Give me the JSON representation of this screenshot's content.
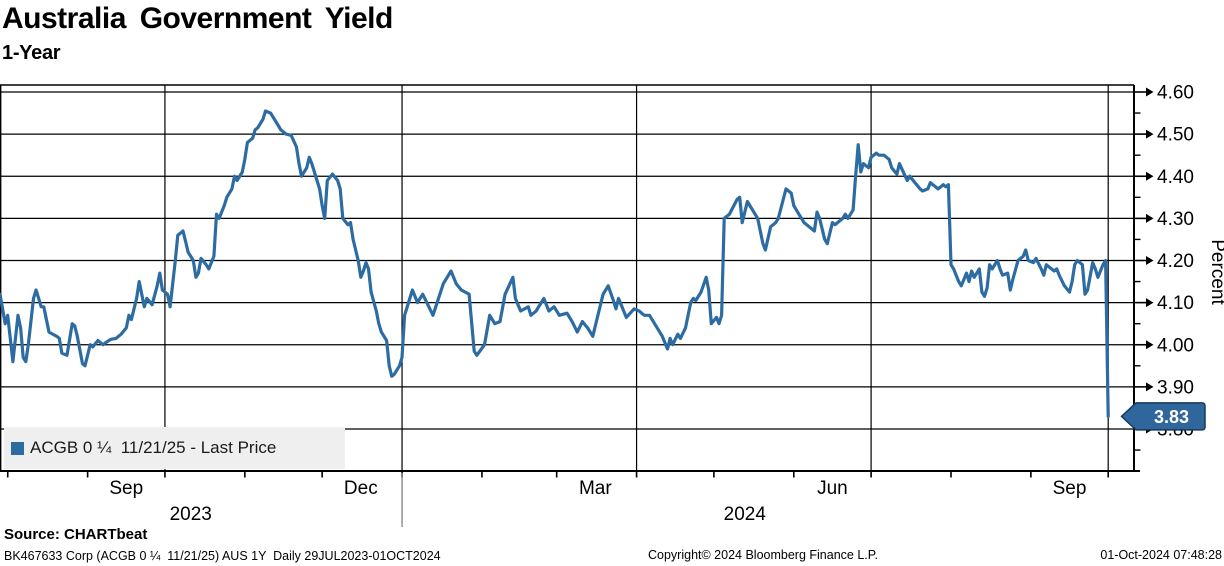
{
  "header": {
    "title": "Australia Government Yield",
    "subtitle": "1-Year"
  },
  "legend": {
    "label": "ACGB 0 ¼  11/21/25 - Last Price"
  },
  "last_price": "3.83",
  "source_line": "Source: CHARTbeat",
  "footer": {
    "left": "BK467633 Corp (ACGB 0 ¼  11/21/25) AUS 1Y  Daily 29JUL2023-01OCT2024",
    "center": "Copyright© 2024 Bloomberg Finance L.P.",
    "right": "01-Oct-2024 07:48:28"
  },
  "colors": {
    "line": "#2d6ca3",
    "badge_fill": "#2f679c",
    "badge_border": "#16395d",
    "badge_text": "#ffffff",
    "grid": "#000000",
    "legend_bg": "#efefef",
    "year_divider": "#8a8a8a"
  },
  "chart_data": {
    "type": "line",
    "title": "Australia Government Yield",
    "subtitle": "1-Year",
    "ylabel": "Percent",
    "ylim": [
      3.7,
      4.62
    ],
    "grid": true,
    "legend_position": "bottom-left",
    "yticks_major": [
      4.6,
      4.5,
      4.4,
      4.3,
      4.2,
      4.1,
      4.0,
      3.9,
      3.8
    ],
    "yticks_minor": [
      4.55,
      4.45,
      4.35,
      4.25,
      4.15,
      4.05,
      3.95,
      3.85,
      3.75
    ],
    "x_start_date": "2023-07-29",
    "x_end_date": "2024-10-01",
    "x_unit": "days_since_start",
    "x_total_days": 430,
    "month_tick_days": [
      3,
      34,
      64,
      95,
      125,
      156,
      187,
      216,
      247,
      277,
      308,
      338,
      369,
      400,
      430
    ],
    "quarter_grid_days": [
      64,
      156,
      247,
      338,
      430
    ],
    "month_labels": [
      {
        "label": "Sep",
        "day": 49
      },
      {
        "label": "Dec",
        "day": 140
      },
      {
        "label": "Mar",
        "day": 231
      },
      {
        "label": "Jun",
        "day": 323
      },
      {
        "label": "Sep",
        "day": 415
      }
    ],
    "year_labels": [
      {
        "label": "2023",
        "day": 74
      },
      {
        "label": "2024",
        "day": 289
      }
    ],
    "year_divider_day": 156,
    "series": [
      {
        "name": "ACGB 0 ¼ 11/21/25 - Last Price",
        "color": "#2d6ca3",
        "last_value": 3.83,
        "points": [
          [
            0,
            4.12
          ],
          [
            2,
            4.05
          ],
          [
            3,
            4.07
          ],
          [
            5,
            3.96
          ],
          [
            7,
            4.07
          ],
          [
            8,
            4.04
          ],
          [
            9,
            3.97
          ],
          [
            10,
            3.96
          ],
          [
            11,
            4.0
          ],
          [
            13,
            4.11
          ],
          [
            14,
            4.13
          ],
          [
            16,
            4.09
          ],
          [
            17,
            4.09
          ],
          [
            18,
            4.06
          ],
          [
            19,
            4.03
          ],
          [
            22,
            4.02
          ],
          [
            23,
            4.015
          ],
          [
            24,
            3.98
          ],
          [
            26,
            3.975
          ],
          [
            28,
            4.05
          ],
          [
            29,
            4.045
          ],
          [
            30,
            4.02
          ],
          [
            32,
            3.955
          ],
          [
            33,
            3.95
          ],
          [
            35,
            4.0
          ],
          [
            36,
            3.995
          ],
          [
            38,
            4.01
          ],
          [
            40,
            4.0
          ],
          [
            41,
            4.005
          ],
          [
            43,
            4.013
          ],
          [
            45,
            4.015
          ],
          [
            47,
            4.025
          ],
          [
            49,
            4.04
          ],
          [
            50,
            4.07
          ],
          [
            51,
            4.06
          ],
          [
            53,
            4.11
          ],
          [
            54,
            4.15
          ],
          [
            56,
            4.09
          ],
          [
            57,
            4.11
          ],
          [
            59,
            4.095
          ],
          [
            61,
            4.14
          ],
          [
            62,
            4.17
          ],
          [
            63,
            4.13
          ],
          [
            65,
            4.12
          ],
          [
            66,
            4.09
          ],
          [
            68,
            4.2
          ],
          [
            69,
            4.26
          ],
          [
            71,
            4.27
          ],
          [
            72,
            4.245
          ],
          [
            73,
            4.22
          ],
          [
            75,
            4.2
          ],
          [
            76,
            4.16
          ],
          [
            77,
            4.17
          ],
          [
            78,
            4.205
          ],
          [
            80,
            4.19
          ],
          [
            81,
            4.18
          ],
          [
            83,
            4.21
          ],
          [
            84,
            4.31
          ],
          [
            85,
            4.3
          ],
          [
            87,
            4.33
          ],
          [
            88,
            4.35
          ],
          [
            90,
            4.37
          ],
          [
            91,
            4.4
          ],
          [
            92,
            4.39
          ],
          [
            94,
            4.41
          ],
          [
            95,
            4.44
          ],
          [
            96,
            4.48
          ],
          [
            98,
            4.49
          ],
          [
            99,
            4.51
          ],
          [
            100,
            4.515
          ],
          [
            102,
            4.535
          ],
          [
            103,
            4.555
          ],
          [
            105,
            4.55
          ],
          [
            106,
            4.54
          ],
          [
            107,
            4.53
          ],
          [
            109,
            4.51
          ],
          [
            111,
            4.5
          ],
          [
            113,
            4.497
          ],
          [
            115,
            4.47
          ],
          [
            116,
            4.43
          ],
          [
            117,
            4.4
          ],
          [
            119,
            4.42
          ],
          [
            120,
            4.445
          ],
          [
            121,
            4.43
          ],
          [
            122,
            4.41
          ],
          [
            124,
            4.37
          ],
          [
            125,
            4.33
          ],
          [
            126,
            4.3
          ],
          [
            127,
            4.39
          ],
          [
            129,
            4.405
          ],
          [
            131,
            4.39
          ],
          [
            132,
            4.37
          ],
          [
            133,
            4.3
          ],
          [
            135,
            4.285
          ],
          [
            136,
            4.29
          ],
          [
            137,
            4.25
          ],
          [
            139,
            4.2
          ],
          [
            140,
            4.16
          ],
          [
            141,
            4.175
          ],
          [
            142,
            4.195
          ],
          [
            143,
            4.18
          ],
          [
            144,
            4.125
          ],
          [
            146,
            4.08
          ],
          [
            147,
            4.05
          ],
          [
            148,
            4.03
          ],
          [
            150,
            4.01
          ],
          [
            151,
            3.95
          ],
          [
            152,
            3.925
          ],
          [
            153,
            3.93
          ],
          [
            155,
            3.95
          ],
          [
            156,
            3.97
          ],
          [
            157,
            4.07
          ],
          [
            160,
            4.13
          ],
          [
            162,
            4.1
          ],
          [
            164,
            4.12
          ],
          [
            168,
            4.07
          ],
          [
            172,
            4.145
          ],
          [
            175,
            4.175
          ],
          [
            177,
            4.145
          ],
          [
            179,
            4.13
          ],
          [
            182,
            4.12
          ],
          [
            184,
            3.985
          ],
          [
            185,
            3.975
          ],
          [
            188,
            4.0
          ],
          [
            190,
            4.07
          ],
          [
            192,
            4.05
          ],
          [
            194,
            4.055
          ],
          [
            196,
            4.12
          ],
          [
            199,
            4.16
          ],
          [
            200,
            4.11
          ],
          [
            202,
            4.08
          ],
          [
            205,
            4.09
          ],
          [
            206,
            4.07
          ],
          [
            208,
            4.08
          ],
          [
            211,
            4.11
          ],
          [
            213,
            4.08
          ],
          [
            215,
            4.09
          ],
          [
            217,
            4.07
          ],
          [
            220,
            4.075
          ],
          [
            222,
            4.055
          ],
          [
            224,
            4.03
          ],
          [
            226,
            4.055
          ],
          [
            228,
            4.04
          ],
          [
            230,
            4.02
          ],
          [
            232,
            4.07
          ],
          [
            234,
            4.12
          ],
          [
            236,
            4.14
          ],
          [
            238,
            4.105
          ],
          [
            239,
            4.085
          ],
          [
            240,
            4.11
          ],
          [
            242,
            4.08
          ],
          [
            243,
            4.065
          ],
          [
            246,
            4.085
          ],
          [
            248,
            4.08
          ],
          [
            250,
            4.07
          ],
          [
            252,
            4.07
          ],
          [
            255,
            4.04
          ],
          [
            257,
            4.02
          ],
          [
            259,
            3.99
          ],
          [
            260,
            4.015
          ],
          [
            261,
            4.0
          ],
          [
            263,
            4.025
          ],
          [
            264,
            4.015
          ],
          [
            266,
            4.04
          ],
          [
            268,
            4.1
          ],
          [
            269,
            4.11
          ],
          [
            270,
            4.105
          ],
          [
            272,
            4.125
          ],
          [
            274,
            4.16
          ],
          [
            275,
            4.13
          ],
          [
            276,
            4.05
          ],
          [
            278,
            4.065
          ],
          [
            279,
            4.05
          ],
          [
            280,
            4.07
          ],
          [
            281,
            4.3
          ],
          [
            283,
            4.31
          ],
          [
            286,
            4.345
          ],
          [
            287,
            4.35
          ],
          [
            288,
            4.29
          ],
          [
            290,
            4.34
          ],
          [
            292,
            4.32
          ],
          [
            294,
            4.3
          ],
          [
            296,
            4.24
          ],
          [
            297,
            4.225
          ],
          [
            299,
            4.28
          ],
          [
            301,
            4.29
          ],
          [
            302,
            4.3
          ],
          [
            305,
            4.37
          ],
          [
            307,
            4.36
          ],
          [
            308,
            4.33
          ],
          [
            310,
            4.31
          ],
          [
            312,
            4.29
          ],
          [
            314,
            4.28
          ],
          [
            316,
            4.27
          ],
          [
            317,
            4.315
          ],
          [
            318,
            4.3
          ],
          [
            320,
            4.25
          ],
          [
            321,
            4.24
          ],
          [
            323,
            4.29
          ],
          [
            324,
            4.285
          ],
          [
            327,
            4.3
          ],
          [
            328,
            4.31
          ],
          [
            329,
            4.3
          ],
          [
            331,
            4.32
          ],
          [
            332,
            4.4
          ],
          [
            333,
            4.475
          ],
          [
            334,
            4.41
          ],
          [
            335,
            4.43
          ],
          [
            337,
            4.42
          ],
          [
            338,
            4.445
          ],
          [
            340,
            4.455
          ],
          [
            341,
            4.45
          ],
          [
            343,
            4.45
          ],
          [
            345,
            4.44
          ],
          [
            346,
            4.42
          ],
          [
            348,
            4.405
          ],
          [
            349,
            4.43
          ],
          [
            352,
            4.39
          ],
          [
            353,
            4.4
          ],
          [
            355,
            4.385
          ],
          [
            357,
            4.37
          ],
          [
            358,
            4.365
          ],
          [
            360,
            4.37
          ],
          [
            361,
            4.385
          ],
          [
            362,
            4.38
          ],
          [
            364,
            4.37
          ],
          [
            366,
            4.38
          ],
          [
            367,
            4.375
          ],
          [
            368,
            4.38
          ],
          [
            369,
            4.19
          ],
          [
            370,
            4.18
          ],
          [
            372,
            4.15
          ],
          [
            373,
            4.14
          ],
          [
            375,
            4.17
          ],
          [
            376,
            4.15
          ],
          [
            377,
            4.175
          ],
          [
            378,
            4.16
          ],
          [
            380,
            4.18
          ],
          [
            381,
            4.125
          ],
          [
            382,
            4.115
          ],
          [
            383,
            4.135
          ],
          [
            384,
            4.19
          ],
          [
            385,
            4.18
          ],
          [
            387,
            4.2
          ],
          [
            388,
            4.18
          ],
          [
            389,
            4.165
          ],
          [
            391,
            4.17
          ],
          [
            392,
            4.13
          ],
          [
            393,
            4.155
          ],
          [
            395,
            4.2
          ],
          [
            397,
            4.21
          ],
          [
            398,
            4.225
          ],
          [
            399,
            4.2
          ],
          [
            401,
            4.195
          ],
          [
            402,
            4.205
          ],
          [
            404,
            4.18
          ],
          [
            405,
            4.165
          ],
          [
            406,
            4.19
          ],
          [
            408,
            4.18
          ],
          [
            409,
            4.175
          ],
          [
            410,
            4.18
          ],
          [
            411,
            4.165
          ],
          [
            413,
            4.14
          ],
          [
            415,
            4.125
          ],
          [
            416,
            4.15
          ],
          [
            417,
            4.19
          ],
          [
            418,
            4.2
          ],
          [
            420,
            4.19
          ],
          [
            421,
            4.12
          ],
          [
            422,
            4.13
          ],
          [
            424,
            4.195
          ],
          [
            425,
            4.18
          ],
          [
            426,
            4.16
          ],
          [
            428,
            4.19
          ],
          [
            429,
            4.2
          ],
          [
            430,
            3.83
          ]
        ]
      }
    ]
  }
}
